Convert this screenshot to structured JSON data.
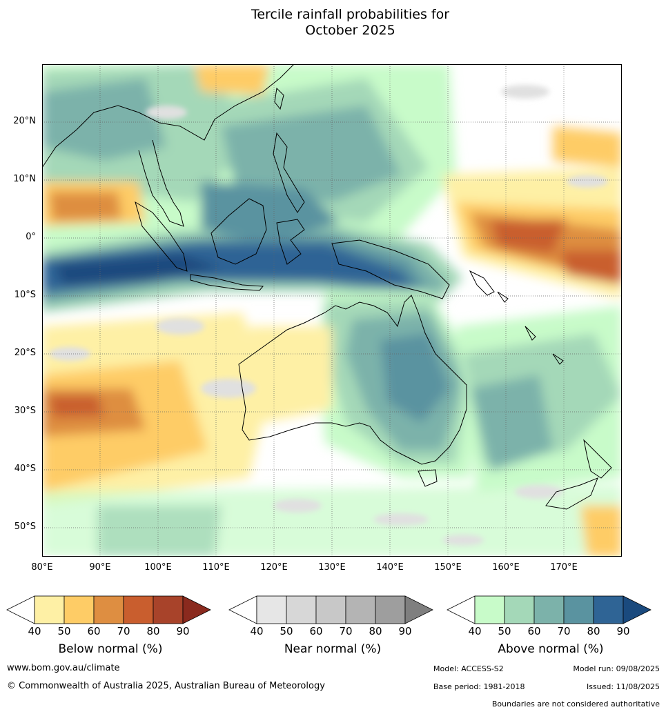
{
  "title_line1": "Tercile rainfall probabilities for",
  "title_line2": "October 2025",
  "map": {
    "lat_labels": [
      "20°N",
      "10°N",
      "0°",
      "10°S",
      "20°S",
      "30°S",
      "40°S",
      "50°S"
    ],
    "lon_labels": [
      "80°E",
      "90°E",
      "100°E",
      "110°E",
      "120°E",
      "130°E",
      "140°E",
      "150°E",
      "160°E",
      "170°E"
    ]
  },
  "colorbars": {
    "below": {
      "title": "Below normal (%)",
      "colors": [
        "#fef0a5",
        "#fecc66",
        "#de8e41",
        "#c95e2e",
        "#a8432a",
        "#8a2a1e"
      ]
    },
    "near": {
      "title": "Near normal (%)",
      "colors": [
        "#e6e6e6",
        "#d7d7d7",
        "#c8c8c8",
        "#b4b4b4",
        "#9e9e9e",
        "#7f7f7f"
      ]
    },
    "above": {
      "title": "Above normal (%)",
      "colors": [
        "#c8fbc9",
        "#a4d8b8",
        "#7cb2aa",
        "#5a93a0",
        "#2f6495",
        "#1a4a7e"
      ]
    },
    "ticks": [
      "40",
      "50",
      "60",
      "70",
      "80",
      "90"
    ]
  },
  "footer": {
    "website": "www.bom.gov.au/climate",
    "copyright": "© Commonwealth of Australia 2025, Australian Bureau of Meteorology",
    "model": "Model: ACCESS-S2",
    "model_run": "Model run: 09/08/2025",
    "base_period": "Base period: 1981-2018",
    "issued": "Issued: 11/08/2025",
    "disclaimer": "Boundaries are not considered authoritative"
  }
}
